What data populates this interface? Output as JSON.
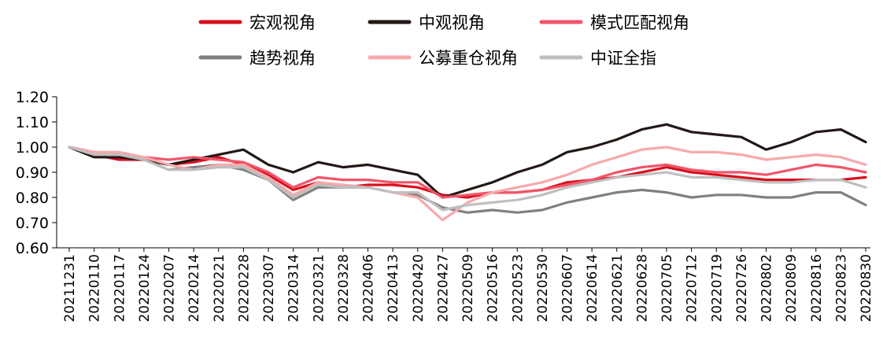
{
  "chart_data": {
    "type": "line",
    "title": "",
    "xlabel": "",
    "ylabel": "",
    "ylim": [
      0.6,
      1.2
    ],
    "yticks": [
      "0.60",
      "0.70",
      "0.80",
      "0.90",
      "1.00",
      "1.10",
      "1.20"
    ],
    "grid": false,
    "legend_position": "top",
    "x_ticks": [
      "20211231",
      "20220110",
      "20220117",
      "20220124",
      "20220207",
      "20220214",
      "20220221",
      "20220228",
      "20220307",
      "20220314",
      "20220321",
      "20220328",
      "20220406",
      "20220413",
      "20220420",
      "20220427",
      "20220509",
      "20220516",
      "20220523",
      "20220530",
      "20220607",
      "20220614",
      "20220621",
      "20220628",
      "20220705",
      "20220712",
      "20220719",
      "20220726",
      "20220802",
      "20220809",
      "20220816",
      "20220823",
      "20220830"
    ],
    "series": [
      {
        "name": "宏观视角",
        "color": "#d7101e",
        "values": [
          1.0,
          0.97,
          0.95,
          0.95,
          0.93,
          0.94,
          0.96,
          0.93,
          0.89,
          0.83,
          0.86,
          0.84,
          0.85,
          0.85,
          0.84,
          0.81,
          0.8,
          0.82,
          0.82,
          0.83,
          0.86,
          0.87,
          0.88,
          0.9,
          0.92,
          0.9,
          0.89,
          0.88,
          0.87,
          0.87,
          0.87,
          0.87,
          0.88
        ]
      },
      {
        "name": "中观视角",
        "color": "#231815",
        "values": [
          1.0,
          0.96,
          0.96,
          0.95,
          0.93,
          0.95,
          0.97,
          0.99,
          0.93,
          0.9,
          0.94,
          0.92,
          0.93,
          0.91,
          0.89,
          0.8,
          0.83,
          0.86,
          0.9,
          0.93,
          0.98,
          1.0,
          1.03,
          1.07,
          1.09,
          1.06,
          1.05,
          1.04,
          0.99,
          1.02,
          1.06,
          1.07,
          1.02
        ]
      },
      {
        "name": "模式匹配视角",
        "color": "#f0566a",
        "values": [
          1.0,
          0.98,
          0.97,
          0.96,
          0.95,
          0.96,
          0.95,
          0.94,
          0.9,
          0.84,
          0.88,
          0.87,
          0.87,
          0.86,
          0.86,
          0.8,
          0.81,
          0.82,
          0.82,
          0.83,
          0.85,
          0.87,
          0.9,
          0.92,
          0.93,
          0.91,
          0.9,
          0.9,
          0.89,
          0.91,
          0.93,
          0.92,
          0.9
        ]
      },
      {
        "name": "趋势视角",
        "color": "#808080",
        "values": [
          1.0,
          0.98,
          0.97,
          0.95,
          0.91,
          0.92,
          0.93,
          0.91,
          0.87,
          0.79,
          0.84,
          0.84,
          0.84,
          0.82,
          0.81,
          0.76,
          0.74,
          0.75,
          0.74,
          0.75,
          0.78,
          0.8,
          0.82,
          0.83,
          0.82,
          0.8,
          0.81,
          0.81,
          0.8,
          0.8,
          0.82,
          0.82,
          0.77
        ]
      },
      {
        "name": "公募重仓视角",
        "color": "#f7a9ac",
        "values": [
          1.0,
          0.98,
          0.98,
          0.96,
          0.93,
          0.91,
          0.93,
          0.93,
          0.88,
          0.81,
          0.86,
          0.85,
          0.84,
          0.82,
          0.8,
          0.71,
          0.78,
          0.82,
          0.84,
          0.86,
          0.89,
          0.93,
          0.96,
          0.99,
          1.0,
          0.98,
          0.98,
          0.97,
          0.95,
          0.96,
          0.97,
          0.96,
          0.93
        ]
      },
      {
        "name": "中证全指",
        "color": "#bfbfbf",
        "values": [
          1.0,
          0.97,
          0.97,
          0.95,
          0.91,
          0.91,
          0.92,
          0.92,
          0.87,
          0.8,
          0.85,
          0.84,
          0.84,
          0.82,
          0.82,
          0.75,
          0.77,
          0.78,
          0.79,
          0.81,
          0.84,
          0.86,
          0.88,
          0.89,
          0.9,
          0.88,
          0.88,
          0.87,
          0.86,
          0.86,
          0.87,
          0.87,
          0.84
        ]
      }
    ]
  }
}
